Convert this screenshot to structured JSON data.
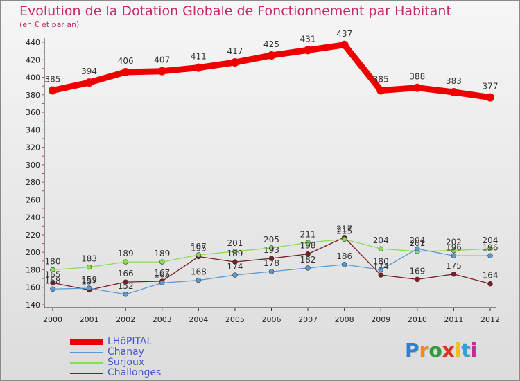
{
  "header": {
    "title": "Evolution de la Dotation Globale de Fonctionnement par Habitant",
    "subtitle": "(en € et par an)"
  },
  "logo": {
    "text": "Proxiti"
  },
  "chart_data": {
    "type": "line",
    "title": "Evolution de la Dotation Globale de Fonctionnement par Habitant",
    "subtitle": "(en € et par an)",
    "xlabel": "",
    "ylabel": "",
    "categories": [
      "2000",
      "2001",
      "2002",
      "2003",
      "2004",
      "2005",
      "2006",
      "2007",
      "2008",
      "2009",
      "2010",
      "2011",
      "2012"
    ],
    "ylim": [
      140,
      440
    ],
    "yticks": [
      140,
      160,
      180,
      200,
      220,
      240,
      260,
      280,
      300,
      320,
      340,
      360,
      380,
      400,
      420,
      440
    ],
    "grid": false,
    "legend_position": "bottom-left",
    "series": [
      {
        "name": "LHôPITAL",
        "color": "#ee0000",
        "values": [
          385,
          394,
          406,
          407,
          411,
          417,
          425,
          431,
          437,
          385,
          388,
          383,
          377
        ],
        "labels_shown": true
      },
      {
        "name": "Chanay",
        "color": "#5a9ad2",
        "values": [
          158,
          159,
          152,
          165,
          168,
          174,
          178,
          182,
          186,
          180,
          204,
          196,
          196
        ],
        "labels_shown": true
      },
      {
        "name": "Surjoux",
        "color": "#88dd55",
        "values": [
          180,
          183,
          189,
          189,
          197,
          201,
          205,
          211,
          215,
          204,
          201,
          202,
          204
        ],
        "labels_shown": true
      },
      {
        "name": "Challonges",
        "color": "#7a1e24",
        "values": [
          165,
          157,
          166,
          167,
          195,
          189,
          193,
          198,
          217,
          174,
          169,
          175,
          164
        ],
        "labels_shown": true
      }
    ]
  }
}
